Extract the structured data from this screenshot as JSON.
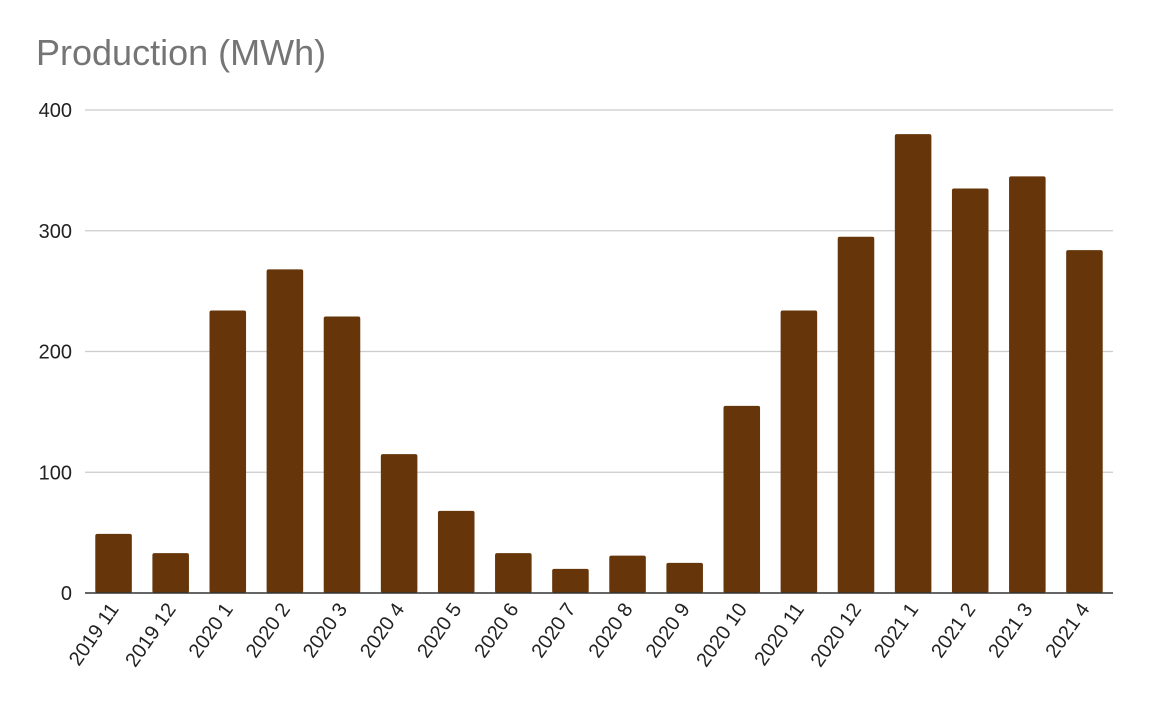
{
  "chart_data": {
    "type": "bar",
    "title": "Production (MWh)",
    "categories": [
      "2019 11",
      "2019 12",
      "2020 1",
      "2020 2",
      "2020 3",
      "2020 4",
      "2020 5",
      "2020 6",
      "2020 7",
      "2020 8",
      "2020 9",
      "2020 10",
      "2020 11",
      "2020 12",
      "2021 1",
      "2021 2",
      "2021 3",
      "2021 4"
    ],
    "values": [
      49,
      33,
      234,
      268,
      229,
      115,
      68,
      33,
      20,
      31,
      25,
      155,
      234,
      295,
      380,
      335,
      345,
      284
    ],
    "ylim": [
      0,
      400
    ],
    "yticks": [
      0,
      100,
      200,
      300,
      400
    ],
    "grid": true,
    "bar_color": "#663509"
  }
}
